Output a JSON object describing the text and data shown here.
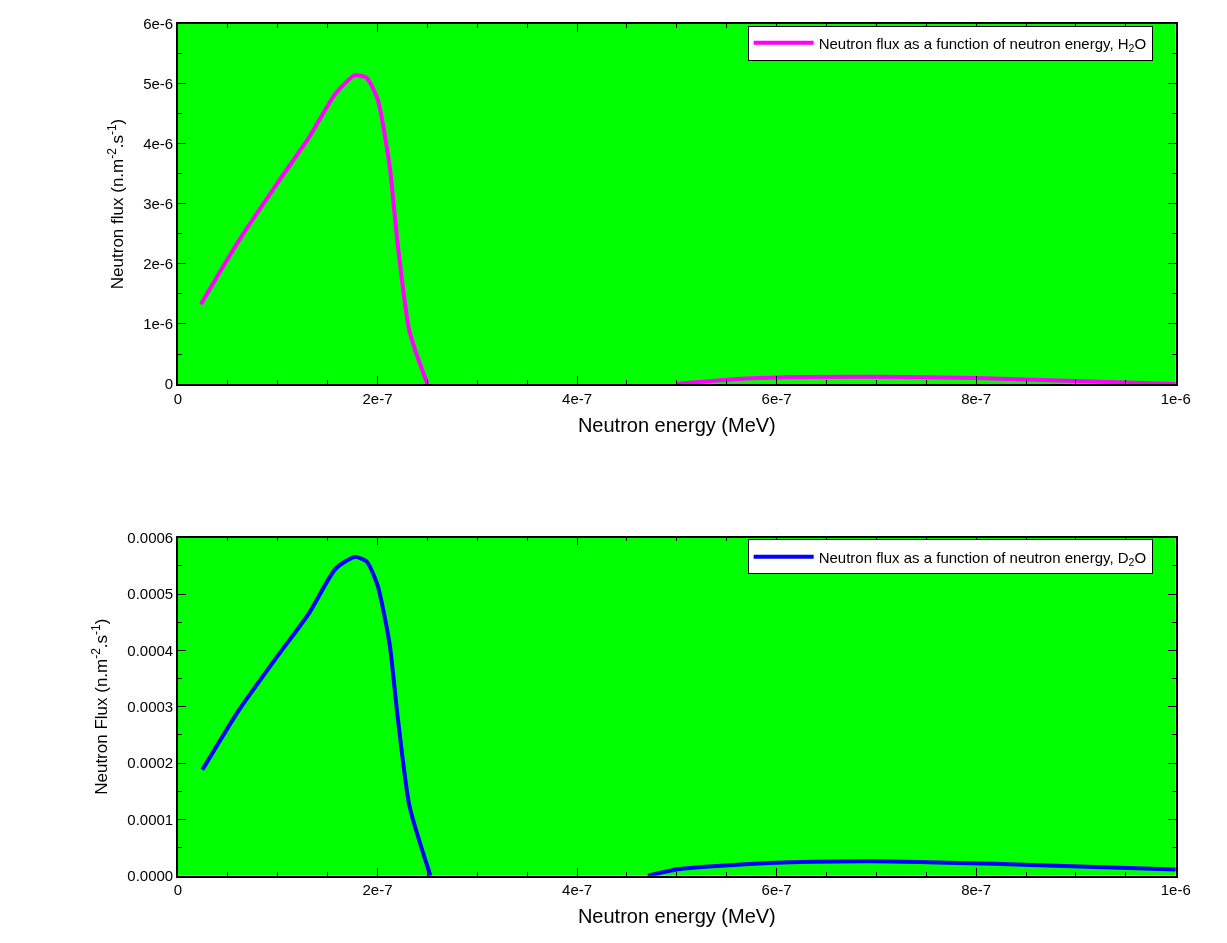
{
  "chart_data": [
    {
      "type": "line",
      "xlabel": "Neutron energy (MeV)",
      "ylabel": "Neutron flux (n.m$^{-2}$.s$^{-1}$)",
      "xlim": [
        0,
        1e-06
      ],
      "xticks": [
        0,
        {
          "value": 2e-07,
          "label": "2e-7"
        },
        {
          "value": 4e-07,
          "label": "4e-7"
        },
        {
          "value": 6e-07,
          "label": "6e-7"
        },
        {
          "value": 8e-07,
          "label": "8e-7"
        },
        {
          "value": 1e-06,
          "label": "1e-6"
        }
      ],
      "ylim": [
        0,
        6e-06
      ],
      "yticks": [
        0,
        {
          "value": 1e-06,
          "label": "1e-6"
        },
        {
          "value": 2e-06,
          "label": "2e-6"
        },
        {
          "value": 3e-06,
          "label": "3e-6"
        },
        {
          "value": 4e-06,
          "label": "4e-6"
        },
        {
          "value": 5e-06,
          "label": "5e-6"
        },
        {
          "value": 6e-06,
          "label": "6e-6"
        }
      ],
      "grid": false,
      "legend": "top right",
      "marker": "none",
      "line_style": "solid",
      "series": [
        {
          "name": "Neutron flux as a function of neutron energy, H$_{2}$O",
          "color": "#ff00ff",
          "x": [
            2.3e-08,
            6e-08,
            9.9e-08,
            1.31e-07,
            1.58e-07,
            1.77e-07,
            1.89e-07,
            2e-07,
            2.12e-07,
            2.2e-07,
            2.32e-07,
            2.5e-07,
            3.7e-07,
            5e-07,
            5.5e-07,
            6e-07,
            7e-07,
            8e-07,
            9e-07,
            1e-06
          ],
          "values": [
            1.33e-06,
            2.36e-06,
            3.33e-06,
            4.1e-06,
            4.84e-06,
            5.14e-06,
            5.1e-06,
            4.75e-06,
            3.65e-06,
            2.36e-06,
            8.8e-07,
            0,
            null,
            0,
            7e-08,
            1.1e-07,
            1.2e-07,
            1e-07,
            5e-08,
            0
          ]
        }
      ]
    },
    {
      "type": "line",
      "xlabel": "Neutron energy (MeV)",
      "ylabel": "Neutron Flux (n.m$^{-2}$.s$^{-1}$)",
      "xlim": [
        0,
        1e-06
      ],
      "xticks": [
        0,
        {
          "value": 2e-07,
          "label": "2e-7"
        },
        {
          "value": 4e-07,
          "label": "4e-7"
        },
        {
          "value": 6e-07,
          "label": "6e-7"
        },
        {
          "value": 8e-07,
          "label": "8e-7"
        },
        {
          "value": 1e-06,
          "label": "1e-6"
        }
      ],
      "ylim": [
        0,
        0.0006
      ],
      "yticks": [
        {
          "value": 0,
          "label": "0.0000"
        },
        {
          "value": 0.0001,
          "label": "0.0001"
        },
        {
          "value": 0.0002,
          "label": "0.0002"
        },
        {
          "value": 0.0003,
          "label": "0.0003"
        },
        {
          "value": 0.0004,
          "label": "0.0004"
        },
        {
          "value": 0.0005,
          "label": "0.0005"
        },
        {
          "value": 0.0006,
          "label": "0.0006"
        }
      ],
      "grid": false,
      "legend": "top right",
      "marker": "none",
      "line_style": "solid",
      "series": [
        {
          "name": "Neutron flux as a function of neutron energy, D$_{2}$O",
          "color": "#0000ff",
          "x": [
            2.45e-08,
            6e-08,
            9.9e-08,
            1.31e-07,
            1.58e-07,
            1.77e-07,
            1.89e-07,
            2e-07,
            2.12e-07,
            2.2e-07,
            2.32e-07,
            2.53e-07,
            3.6e-07,
            4.71e-07,
            5.01e-07,
            5.92e-07,
            6.94e-07,
            8.32e-07,
            1e-06
          ],
          "values": [
            0.000188,
            0.000291,
            0.000388,
            0.000465,
            0.000545,
            0.000566,
            0.000558,
            0.000516,
            0.000413,
            0.000285,
            0.000124,
            0,
            null,
            0,
            1.16e-05,
            2.26e-05,
            2.58e-05,
            2.06e-05,
            1.1e-05
          ]
        }
      ]
    }
  ]
}
